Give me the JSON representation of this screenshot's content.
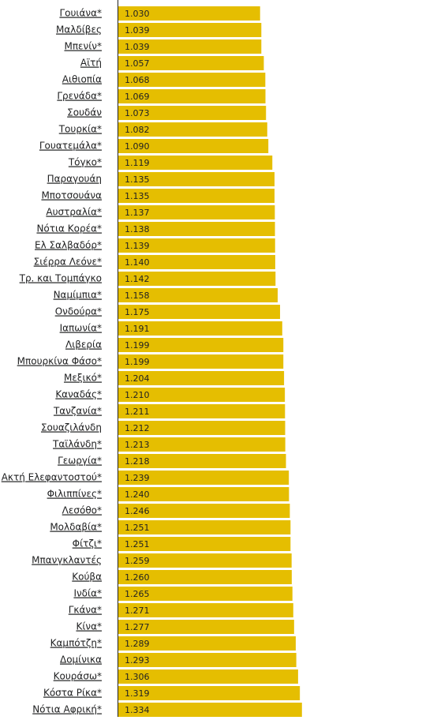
{
  "chart_data": {
    "type": "bar",
    "orientation": "horizontal",
    "color": "#e5be01",
    "categories": [
      "Γουιάνα*",
      "Μαλδίβες",
      "Μπενίν*",
      "Αϊτή",
      "Αιθιοπία",
      "Γρενάδα*",
      "Σουδάν",
      "Τουρκία*",
      "Γουατεμάλα*",
      "Τόγκο*",
      "Παραγουάη",
      "Μποτσουάνα",
      "Αυστραλία*",
      "Νότια Κορέα*",
      "Ελ Σαλβαδόρ*",
      "Σιέρρα Λεόνε*",
      "Τρ. και Τομπάγκο",
      "Ναμίμπια*",
      "Ονδούρα*",
      "Ιαπωνία*",
      "Λιβερία",
      "Μπουρκίνα Φάσο*",
      "Μεξικό*",
      "Καναδάς*",
      "Τανζανία*",
      "Σουαζιλάνδη",
      "Ταϊλάνδη*",
      "Γεωργία*",
      "Ακτή Ελεφαντοστού*",
      "Φιλιππίνες*",
      "Λεσόθο*",
      "Μολδαβία*",
      "Φίτζι*",
      "Μπανγκλαντές",
      "Κούβα",
      "Ινδία*",
      "Γκάνα*",
      "Κίνα*",
      "Καμπότζη*",
      "Δομίνικα",
      "Κουράσω*",
      "Κόστα Ρίκα*",
      "Νότια Αφρική*"
    ],
    "values": [
      1.03,
      1.039,
      1.039,
      1.057,
      1.068,
      1.069,
      1.073,
      1.082,
      1.09,
      1.119,
      1.135,
      1.135,
      1.137,
      1.138,
      1.139,
      1.14,
      1.142,
      1.158,
      1.175,
      1.191,
      1.199,
      1.199,
      1.204,
      1.21,
      1.211,
      1.212,
      1.213,
      1.218,
      1.239,
      1.24,
      1.246,
      1.251,
      1.251,
      1.259,
      1.26,
      1.265,
      1.271,
      1.277,
      1.289,
      1.293,
      1.306,
      1.319,
      1.334
    ],
    "value_labels": [
      "1.030",
      "1.039",
      "1.039",
      "1.057",
      "1.068",
      "1.069",
      "1.073",
      "1.082",
      "1.090",
      "1.119",
      "1.135",
      "1.135",
      "1.137",
      "1.138",
      "1.139",
      "1.140",
      "1.142",
      "1.158",
      "1.175",
      "1.191",
      "1.199",
      "1.199",
      "1.204",
      "1.210",
      "1.211",
      "1.212",
      "1.213",
      "1.218",
      "1.239",
      "1.240",
      "1.246",
      "1.251",
      "1.251",
      "1.259",
      "1.260",
      "1.265",
      "1.271",
      "1.277",
      "1.289",
      "1.293",
      "1.306",
      "1.319",
      "1.334"
    ]
  }
}
